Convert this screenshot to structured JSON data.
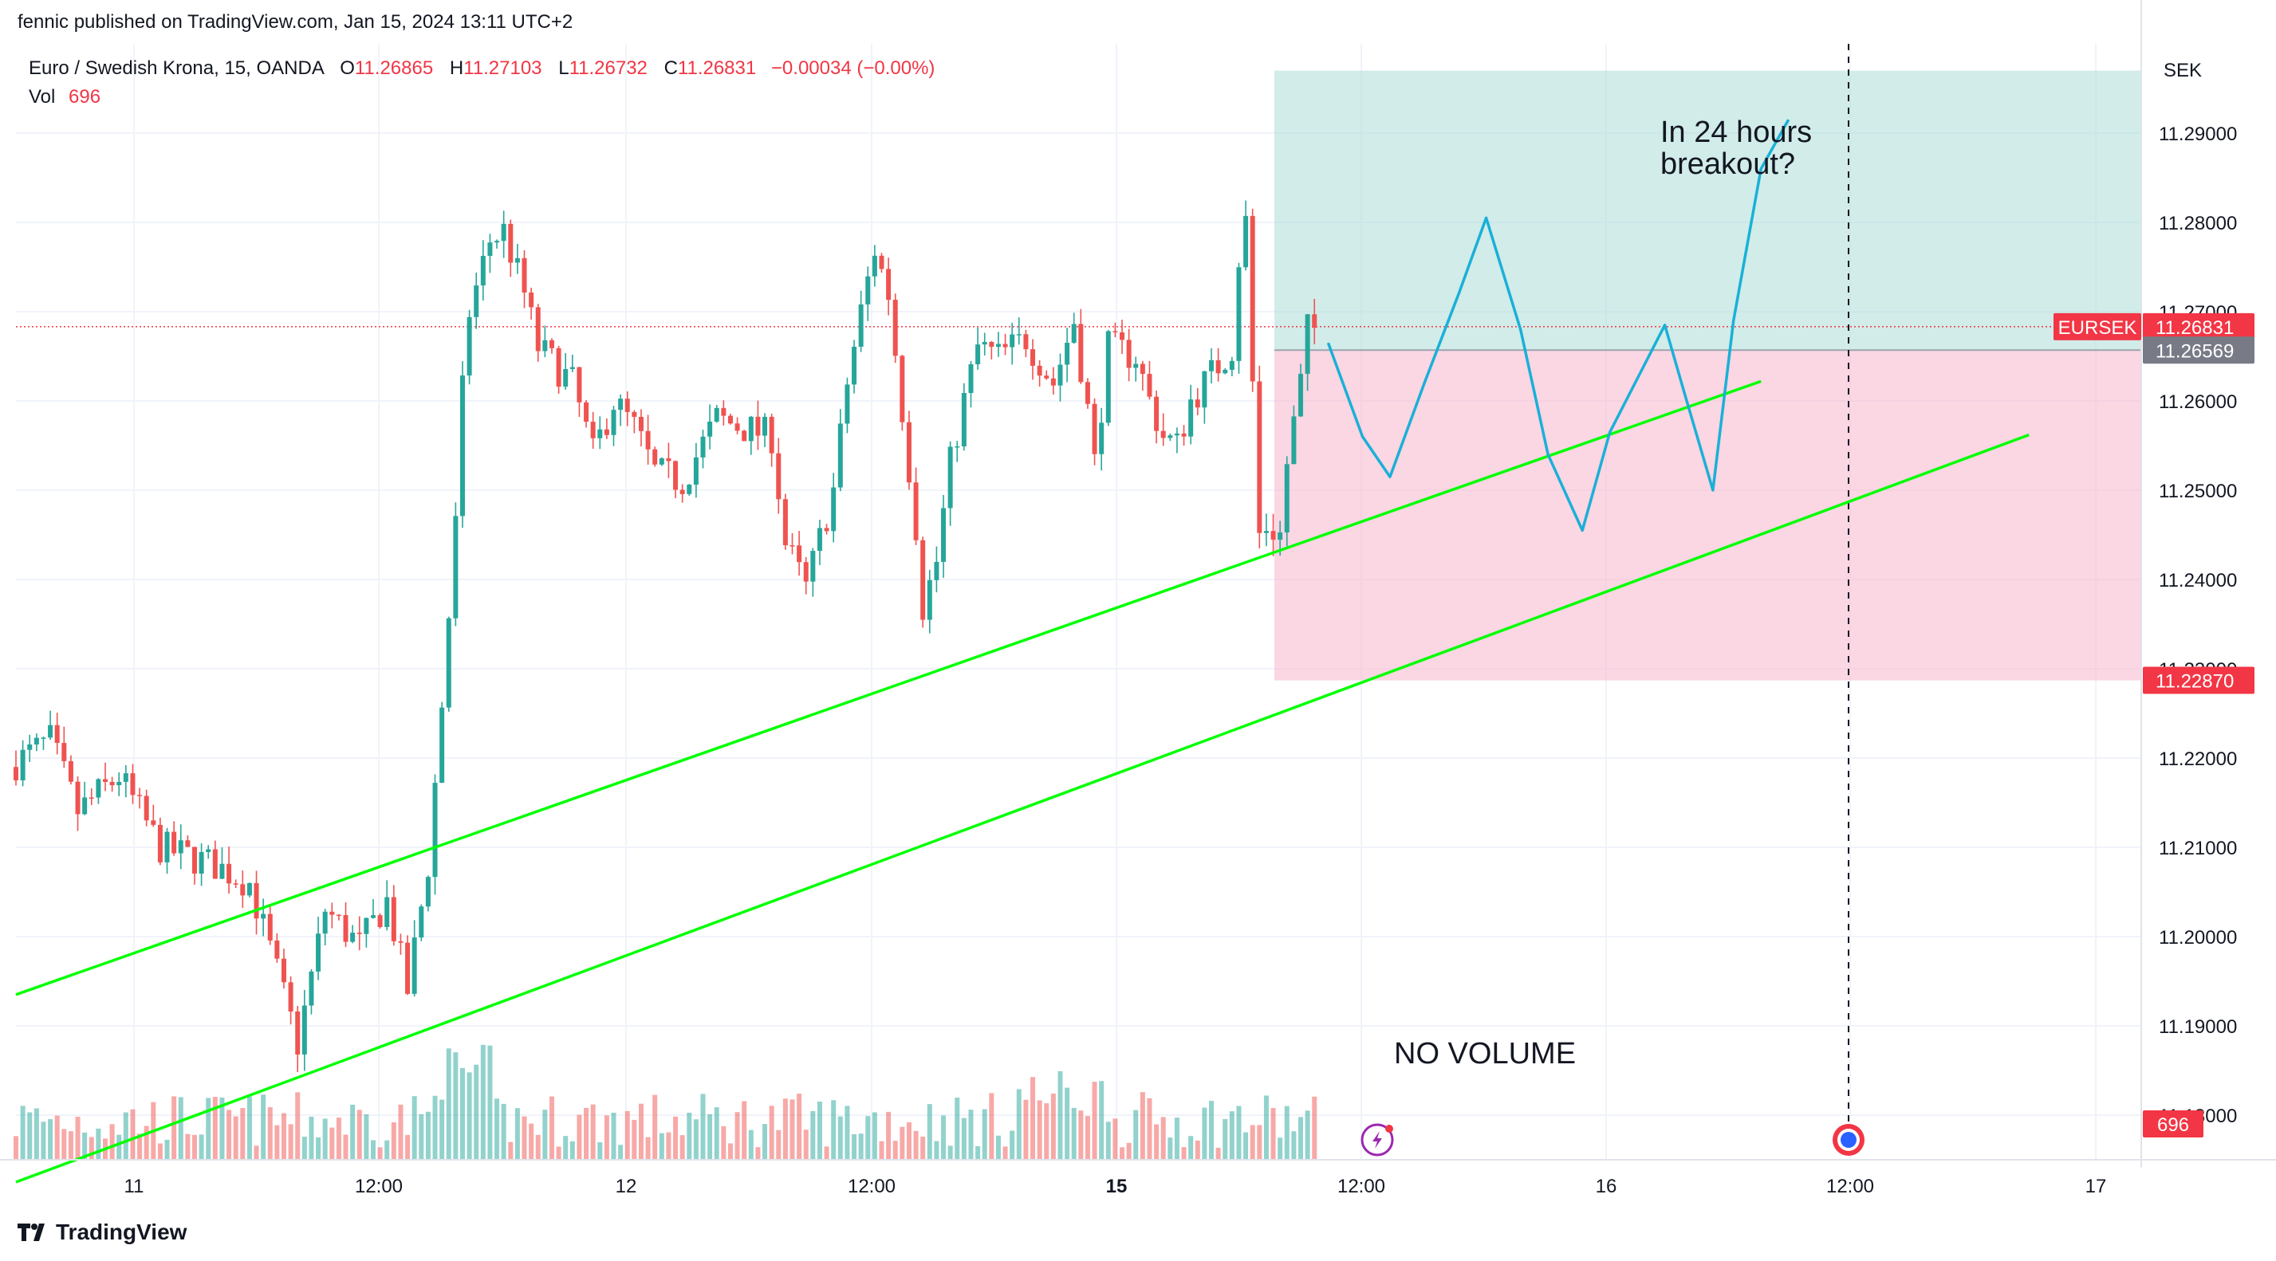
{
  "header": {
    "publisher_line": "fennic published on TradingView.com, Jan 15, 2024 13:11 UTC+2"
  },
  "legend": {
    "symbol": "Euro / Swedish Krona, 15, OANDA",
    "open_label": "O",
    "open": "11.26865",
    "high_label": "H",
    "high": "11.27103",
    "low_label": "L",
    "low": "11.26732",
    "close_label": "C",
    "close": "11.26831",
    "change": "−0.00034 (−0.00%)",
    "vol_label": "Vol",
    "vol": "696"
  },
  "footer": {
    "brand": "TradingView"
  },
  "colors": {
    "up": "#26a69a",
    "down": "#ef5350",
    "trendline": "#00ff00",
    "projection": "#1ab0d8",
    "target_zone": "#b2dfdb",
    "stop_zone": "#f8bbd0",
    "price_tag": "#f23645",
    "entry_tag": "#787b86"
  },
  "icons": [
    "tradingview-logo-icon",
    "lightning-icon",
    "event-marker-icon"
  ],
  "chart_data": {
    "type": "candlestick",
    "symbol_tag": "EURSEK",
    "currency": "SEK",
    "ylim": [
      11.175,
      11.3
    ],
    "y_ticks": [
      "11.18000",
      "11.19000",
      "11.20000",
      "11.21000",
      "11.22000",
      "11.23000",
      "11.24000",
      "11.25000",
      "11.26000",
      "11.27000",
      "11.28000",
      "11.29000"
    ],
    "x_ticks": [
      "11",
      "12:00",
      "12",
      "12:00",
      "15",
      "12:00",
      "16",
      "12:00",
      "17"
    ],
    "bold_x_ticks": [
      "15"
    ],
    "price_labels": {
      "last": "11.26831",
      "entry": "11.26569",
      "stop": "11.22870",
      "volume": "696"
    },
    "levels": {
      "target": 11.297,
      "entry": 11.26569,
      "stop": 11.2287,
      "last": 11.26831
    },
    "annotations": [
      "In 24 hours\nbreakout?",
      "NO VOLUME"
    ],
    "candle_waypoints": [
      [
        0,
        11.219
      ],
      [
        6,
        11.222
      ],
      [
        10,
        11.214
      ],
      [
        16,
        11.218
      ],
      [
        22,
        11.21
      ],
      [
        30,
        11.208
      ],
      [
        35,
        11.206
      ],
      [
        39,
        11.196
      ],
      [
        42,
        11.188
      ],
      [
        46,
        11.203
      ],
      [
        51,
        11.199
      ],
      [
        55,
        11.204
      ],
      [
        58,
        11.194
      ],
      [
        61,
        11.208
      ],
      [
        63,
        11.226
      ],
      [
        65,
        11.246
      ],
      [
        66,
        11.261
      ],
      [
        67,
        11.27
      ],
      [
        70,
        11.278
      ],
      [
        72,
        11.279
      ],
      [
        75,
        11.272
      ],
      [
        77,
        11.266
      ],
      [
        82,
        11.262
      ],
      [
        85,
        11.254
      ],
      [
        88,
        11.26
      ],
      [
        91,
        11.257
      ],
      [
        94,
        11.252
      ],
      [
        98,
        11.251
      ],
      [
        103,
        11.258
      ],
      [
        107,
        11.257
      ],
      [
        111,
        11.256
      ],
      [
        113,
        11.244
      ],
      [
        116,
        11.239
      ],
      [
        120,
        11.25
      ],
      [
        122,
        11.262
      ],
      [
        124,
        11.27
      ],
      [
        126,
        11.277
      ],
      [
        128,
        11.272
      ],
      [
        130,
        11.259
      ],
      [
        132,
        11.246
      ],
      [
        133,
        11.237
      ],
      [
        135,
        11.242
      ],
      [
        137,
        11.253
      ],
      [
        139,
        11.26
      ],
      [
        141,
        11.266
      ],
      [
        144,
        11.265
      ],
      [
        148,
        11.267
      ],
      [
        152,
        11.262
      ],
      [
        155,
        11.269
      ],
      [
        157,
        11.259
      ],
      [
        158,
        11.253
      ],
      [
        160,
        11.266
      ],
      [
        164,
        11.265
      ],
      [
        166,
        11.26
      ],
      [
        168,
        11.256
      ],
      [
        170,
        11.255
      ],
      [
        172,
        11.26
      ],
      [
        175,
        11.263
      ],
      [
        178,
        11.266
      ],
      [
        179,
        11.276
      ],
      [
        180,
        11.28
      ],
      [
        181,
        11.262
      ],
      [
        182,
        11.245
      ],
      [
        183,
        11.246
      ],
      [
        185,
        11.245
      ],
      [
        186,
        11.253
      ],
      [
        188,
        11.262
      ],
      [
        189,
        11.268
      ]
    ],
    "trendlines": [
      {
        "from": {
          "bar": 0,
          "price": 11.1935
        },
        "to": {
          "bar": 254,
          "price": 11.2622
        }
      },
      {
        "from": {
          "bar": 0,
          "price": 11.1725
        },
        "to": {
          "bar": 293,
          "price": 11.2562
        }
      }
    ],
    "projection_path": [
      [
        191,
        11.2665
      ],
      [
        196,
        11.256
      ],
      [
        200,
        11.2515
      ],
      [
        205,
        11.262
      ],
      [
        210,
        11.272
      ],
      [
        214,
        11.2805
      ],
      [
        219,
        11.268
      ],
      [
        223,
        11.254
      ],
      [
        228,
        11.2455
      ],
      [
        232,
        11.2565
      ],
      [
        236,
        11.2625
      ],
      [
        240,
        11.2685
      ],
      [
        243,
        11.2605
      ],
      [
        247,
        11.25
      ],
      [
        250,
        11.269
      ],
      [
        254,
        11.286
      ],
      [
        258,
        11.2915
      ]
    ]
  }
}
